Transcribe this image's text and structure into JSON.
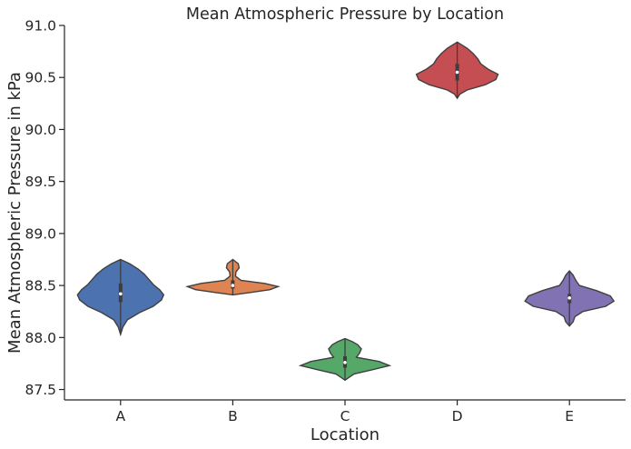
{
  "chart_data": {
    "type": "violin",
    "title": "Mean Atmospheric Pressure by Location",
    "xlabel": "Location",
    "ylabel": "Mean Atmospheric Pressure in kPa",
    "categories": [
      "A",
      "B",
      "C",
      "D",
      "E"
    ],
    "ylim": [
      87.4,
      91.0
    ],
    "yticks": [
      "87.5",
      "88.0",
      "88.5",
      "89.0",
      "89.5",
      "90.0",
      "90.5",
      "91.0"
    ],
    "grid": false,
    "colors": [
      "#4c72b0",
      "#dd8452",
      "#55a868",
      "#c44e52",
      "#8172b3"
    ],
    "series": [
      {
        "category": "A",
        "min": 88.03,
        "max": 88.75,
        "q1": 88.34,
        "median": 88.42,
        "q3": 88.52,
        "profile": [
          [
            88.03,
            0.0
          ],
          [
            88.1,
            0.05
          ],
          [
            88.17,
            0.15
          ],
          [
            88.24,
            0.42
          ],
          [
            88.3,
            0.72
          ],
          [
            88.36,
            0.9
          ],
          [
            88.41,
            0.95
          ],
          [
            88.46,
            0.86
          ],
          [
            88.51,
            0.72
          ],
          [
            88.56,
            0.62
          ],
          [
            88.61,
            0.52
          ],
          [
            88.66,
            0.38
          ],
          [
            88.71,
            0.2
          ],
          [
            88.75,
            0.0
          ]
        ]
      },
      {
        "category": "B",
        "min": 88.41,
        "max": 88.75,
        "q1": 88.47,
        "median": 88.5,
        "q3": 88.55,
        "profile": [
          [
            88.41,
            0.0
          ],
          [
            88.43,
            0.35
          ],
          [
            88.46,
            0.82
          ],
          [
            88.49,
            1.0
          ],
          [
            88.52,
            0.7
          ],
          [
            88.55,
            0.18
          ],
          [
            88.59,
            0.06
          ],
          [
            88.63,
            0.07
          ],
          [
            88.67,
            0.14
          ],
          [
            88.71,
            0.12
          ],
          [
            88.75,
            0.0
          ]
        ]
      },
      {
        "category": "C",
        "min": 87.59,
        "max": 87.99,
        "q1": 87.71,
        "median": 87.76,
        "q3": 87.82,
        "profile": [
          [
            87.59,
            0.0
          ],
          [
            87.62,
            0.1
          ],
          [
            87.65,
            0.2
          ],
          [
            87.69,
            0.6
          ],
          [
            87.73,
            0.98
          ],
          [
            87.77,
            0.75
          ],
          [
            87.81,
            0.25
          ],
          [
            87.85,
            0.32
          ],
          [
            87.89,
            0.36
          ],
          [
            87.93,
            0.28
          ],
          [
            87.96,
            0.16
          ],
          [
            87.99,
            0.0
          ]
        ]
      },
      {
        "category": "D",
        "min": 90.3,
        "max": 90.84,
        "q1": 90.47,
        "median": 90.55,
        "q3": 90.63,
        "profile": [
          [
            90.3,
            0.0
          ],
          [
            90.34,
            0.06
          ],
          [
            90.38,
            0.22
          ],
          [
            90.43,
            0.62
          ],
          [
            90.48,
            0.85
          ],
          [
            90.53,
            0.9
          ],
          [
            90.58,
            0.68
          ],
          [
            90.63,
            0.52
          ],
          [
            90.68,
            0.45
          ],
          [
            90.73,
            0.35
          ],
          [
            90.78,
            0.22
          ],
          [
            90.84,
            0.0
          ]
        ]
      },
      {
        "category": "E",
        "min": 88.11,
        "max": 88.64,
        "q1": 88.33,
        "median": 88.38,
        "q3": 88.42,
        "profile": [
          [
            88.11,
            0.0
          ],
          [
            88.15,
            0.08
          ],
          [
            88.2,
            0.12
          ],
          [
            88.25,
            0.3
          ],
          [
            88.3,
            0.8
          ],
          [
            88.35,
            0.98
          ],
          [
            88.4,
            0.9
          ],
          [
            88.45,
            0.6
          ],
          [
            88.5,
            0.22
          ],
          [
            88.55,
            0.14
          ],
          [
            88.6,
            0.08
          ],
          [
            88.64,
            0.0
          ]
        ]
      }
    ]
  }
}
